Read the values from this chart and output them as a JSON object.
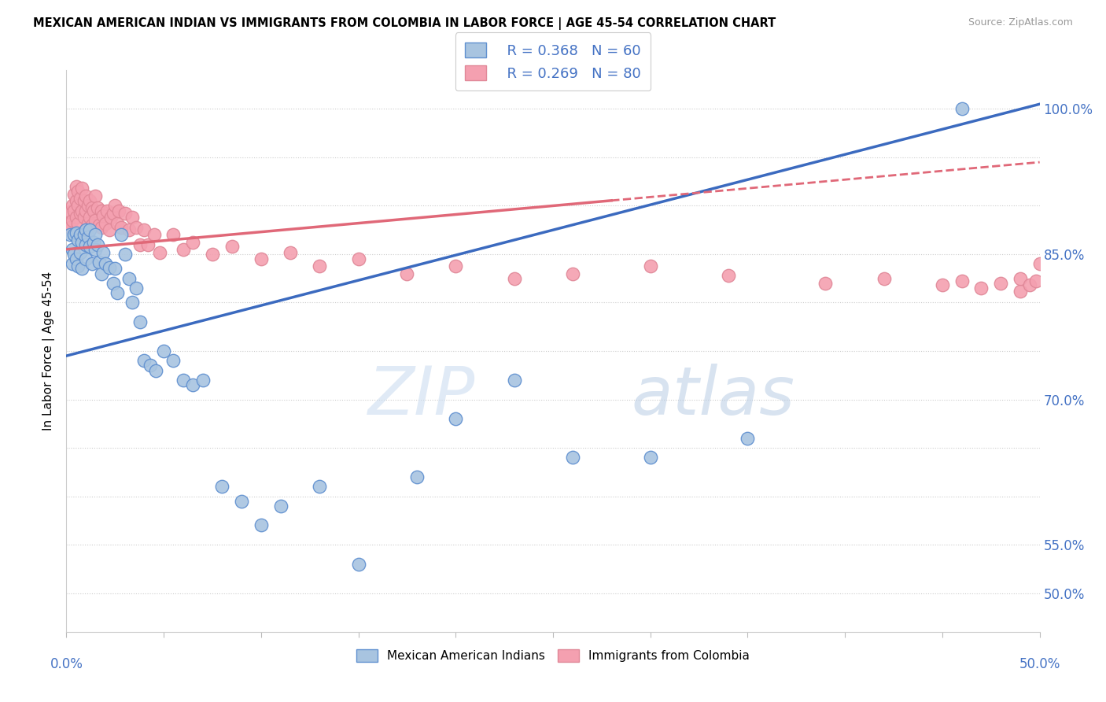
{
  "title": "MEXICAN AMERICAN INDIAN VS IMMIGRANTS FROM COLOMBIA IN LABOR FORCE | AGE 45-54 CORRELATION CHART",
  "source": "Source: ZipAtlas.com",
  "ylabel": "In Labor Force | Age 45-54",
  "x_min": 0.0,
  "x_max": 0.5,
  "y_min": 0.46,
  "y_max": 1.04,
  "blue_color": "#a8c4e0",
  "pink_color": "#f4a0b0",
  "blue_line_color": "#3b6abf",
  "pink_line_color": "#e06878",
  "axis_label_color": "#4472c4",
  "R_blue": 0.368,
  "N_blue": 60,
  "R_pink": 0.269,
  "N_pink": 80,
  "watermark_zip": "ZIP",
  "watermark_atlas": "atlas",
  "blue_line_x0": 0.0,
  "blue_line_y0": 0.745,
  "blue_line_x1": 0.5,
  "blue_line_y1": 1.005,
  "pink_line_x0": 0.0,
  "pink_line_y0": 0.855,
  "pink_line_x1": 0.5,
  "pink_line_y1": 0.945,
  "blue_scatter_x": [
    0.002,
    0.003,
    0.003,
    0.004,
    0.004,
    0.005,
    0.005,
    0.006,
    0.006,
    0.007,
    0.007,
    0.008,
    0.008,
    0.009,
    0.01,
    0.01,
    0.01,
    0.011,
    0.012,
    0.012,
    0.013,
    0.014,
    0.015,
    0.015,
    0.016,
    0.017,
    0.018,
    0.019,
    0.02,
    0.022,
    0.024,
    0.025,
    0.026,
    0.028,
    0.03,
    0.032,
    0.034,
    0.036,
    0.038,
    0.04,
    0.043,
    0.046,
    0.05,
    0.055,
    0.06,
    0.065,
    0.07,
    0.08,
    0.09,
    0.1,
    0.11,
    0.13,
    0.15,
    0.18,
    0.2,
    0.23,
    0.26,
    0.3,
    0.35,
    0.46
  ],
  "blue_scatter_y": [
    0.87,
    0.855,
    0.84,
    0.87,
    0.85,
    0.872,
    0.845,
    0.865,
    0.838,
    0.87,
    0.852,
    0.862,
    0.835,
    0.87,
    0.875,
    0.86,
    0.845,
    0.868,
    0.875,
    0.858,
    0.84,
    0.862,
    0.87,
    0.855,
    0.86,
    0.842,
    0.83,
    0.852,
    0.84,
    0.836,
    0.82,
    0.835,
    0.81,
    0.87,
    0.85,
    0.825,
    0.8,
    0.815,
    0.78,
    0.74,
    0.735,
    0.73,
    0.75,
    0.74,
    0.72,
    0.715,
    0.72,
    0.61,
    0.595,
    0.57,
    0.59,
    0.61,
    0.53,
    0.62,
    0.68,
    0.72,
    0.64,
    0.64,
    0.66,
    1.0
  ],
  "pink_scatter_x": [
    0.001,
    0.002,
    0.002,
    0.003,
    0.003,
    0.004,
    0.004,
    0.005,
    0.005,
    0.005,
    0.006,
    0.006,
    0.006,
    0.007,
    0.007,
    0.008,
    0.008,
    0.009,
    0.009,
    0.01,
    0.01,
    0.01,
    0.011,
    0.011,
    0.012,
    0.012,
    0.013,
    0.013,
    0.014,
    0.015,
    0.015,
    0.016,
    0.017,
    0.018,
    0.018,
    0.019,
    0.02,
    0.021,
    0.022,
    0.023,
    0.024,
    0.025,
    0.026,
    0.027,
    0.028,
    0.03,
    0.032,
    0.034,
    0.036,
    0.038,
    0.04,
    0.042,
    0.045,
    0.048,
    0.055,
    0.06,
    0.065,
    0.075,
    0.085,
    0.1,
    0.115,
    0.13,
    0.15,
    0.175,
    0.2,
    0.23,
    0.26,
    0.3,
    0.34,
    0.39,
    0.42,
    0.45,
    0.46,
    0.47,
    0.48,
    0.49,
    0.49,
    0.495,
    0.498,
    0.5
  ],
  "pink_scatter_y": [
    0.882,
    0.894,
    0.878,
    0.9,
    0.885,
    0.912,
    0.895,
    0.92,
    0.905,
    0.888,
    0.915,
    0.9,
    0.882,
    0.908,
    0.892,
    0.918,
    0.895,
    0.905,
    0.888,
    0.91,
    0.895,
    0.875,
    0.9,
    0.882,
    0.905,
    0.888,
    0.898,
    0.88,
    0.895,
    0.91,
    0.885,
    0.898,
    0.88,
    0.895,
    0.878,
    0.89,
    0.882,
    0.895,
    0.875,
    0.888,
    0.892,
    0.9,
    0.882,
    0.895,
    0.878,
    0.892,
    0.875,
    0.888,
    0.878,
    0.86,
    0.875,
    0.86,
    0.87,
    0.852,
    0.87,
    0.855,
    0.862,
    0.85,
    0.858,
    0.845,
    0.852,
    0.838,
    0.845,
    0.83,
    0.838,
    0.825,
    0.83,
    0.838,
    0.828,
    0.82,
    0.825,
    0.818,
    0.822,
    0.815,
    0.82,
    0.812,
    0.825,
    0.818,
    0.822,
    0.84
  ]
}
